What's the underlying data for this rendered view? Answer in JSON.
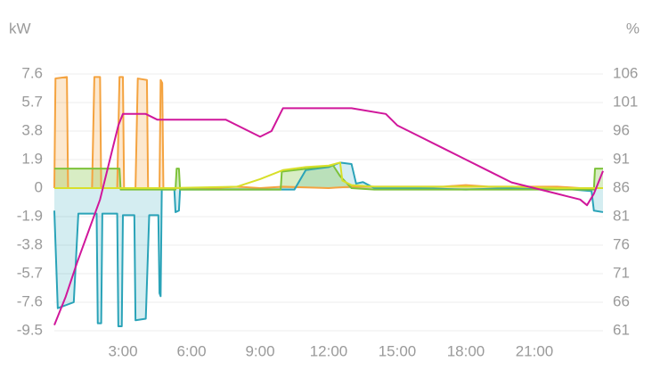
{
  "chart_data": {
    "type": "line",
    "y_label": "kW",
    "y2_label": "%",
    "xlim": [
      0,
      24
    ],
    "xticks": [
      {
        "value": 3,
        "label": "3:00"
      },
      {
        "value": 6,
        "label": "6:00"
      },
      {
        "value": 9,
        "label": "9:00"
      },
      {
        "value": 12,
        "label": "12:00"
      },
      {
        "value": 15,
        "label": "15:00"
      },
      {
        "value": 18,
        "label": "18:00"
      },
      {
        "value": 21,
        "label": "21:00"
      }
    ],
    "ylim": [
      -9.5,
      7.6
    ],
    "yticks": [
      7.6,
      5.7,
      3.8,
      1.9,
      0,
      -1.9,
      -3.8,
      -5.7,
      -7.6,
      -9.5
    ],
    "y2lim": [
      61,
      106
    ],
    "y2ticks": [
      106,
      101,
      96,
      91,
      86,
      81,
      76,
      71,
      66,
      61
    ],
    "grid": true,
    "series": [
      {
        "color": "#f4a340",
        "fill": "rgba(244,163,64,0.25)",
        "x": [
          0,
          0.05,
          0.55,
          0.6,
          1.65,
          1.75,
          2.0,
          2.05,
          2.75,
          2.85,
          3.0,
          3.05,
          3.55,
          3.65,
          4.05,
          4.1,
          4.6,
          4.65,
          4.72,
          4.77,
          7,
          8,
          9,
          10,
          12,
          13,
          14,
          15,
          16,
          17,
          18,
          19,
          20,
          21,
          22,
          23,
          24
        ],
        "values": [
          0,
          7.3,
          7.4,
          0,
          0,
          7.4,
          7.4,
          0,
          0,
          7.4,
          7.4,
          0,
          0,
          7.3,
          7.2,
          0,
          0,
          7.2,
          7.0,
          0,
          0,
          0.1,
          0,
          0.1,
          0,
          0.1,
          0.1,
          0.1,
          0.1,
          0.1,
          0.2,
          0.1,
          0.1,
          0.1,
          0.1,
          0,
          0
        ]
      },
      {
        "color": "#2aa3b8",
        "fill": "rgba(42,163,184,0.2)",
        "x": [
          0,
          0.15,
          0.85,
          1.05,
          1.1,
          1.85,
          1.9,
          2.05,
          2.1,
          2.75,
          2.8,
          2.95,
          3.0,
          3.5,
          3.55,
          4.0,
          4.15,
          4.55,
          4.6,
          4.65,
          4.7,
          5.25,
          5.3,
          5.45,
          5.5,
          10.5,
          11,
          12,
          12.5,
          13,
          13.2,
          13.5,
          14,
          16,
          18,
          20,
          22,
          23.5,
          23.6,
          24
        ],
        "values": [
          -1.5,
          -8.0,
          -7.6,
          -1.7,
          -1.7,
          -1.7,
          -9.0,
          -9.0,
          -1.7,
          -1.7,
          -9.2,
          -9.2,
          -1.8,
          -1.8,
          -8.8,
          -8.7,
          -1.8,
          -1.8,
          -7.0,
          -7.2,
          -0.1,
          -0.1,
          -1.6,
          -1.5,
          -0.1,
          -0.1,
          1.2,
          1.4,
          1.7,
          1.6,
          0.3,
          0.4,
          0,
          0,
          -0.1,
          0,
          0,
          -0.2,
          -1.5,
          -1.6
        ]
      },
      {
        "color": "#7dc23a",
        "fill": "rgba(125,194,58,0.3)",
        "x": [
          0,
          2.85,
          2.9,
          5.3,
          5.35,
          5.45,
          5.5,
          9,
          9.9,
          9.95,
          12.2,
          12.5,
          13,
          14,
          16,
          18,
          20,
          22,
          23.6,
          23.65,
          24
        ],
        "values": [
          1.3,
          1.3,
          -0.1,
          -0.1,
          1.3,
          1.3,
          -0.1,
          -0.1,
          -0.1,
          1.1,
          1.5,
          0.8,
          0,
          -0.1,
          -0.1,
          -0.1,
          -0.1,
          -0.1,
          -0.1,
          1.3,
          1.3
        ]
      },
      {
        "color": "#d8df2a",
        "x": [
          0,
          5,
          8,
          9,
          10,
          11,
          12,
          12.5,
          12.6,
          13,
          14,
          16,
          18,
          20,
          22,
          24
        ],
        "values": [
          0,
          0,
          0.1,
          0.6,
          1.2,
          1.4,
          1.5,
          1.7,
          0.5,
          0.2,
          0.1,
          0.1,
          0.1,
          0.1,
          0,
          0
        ]
      },
      {
        "color": "#d0179b",
        "axis": "y2",
        "x": [
          0,
          0.5,
          1,
          2,
          2.8,
          3,
          4,
          4.5,
          5,
          6,
          7,
          7.5,
          8,
          8.5,
          9,
          9.5,
          10,
          13,
          14.5,
          15,
          16,
          17,
          18,
          19,
          20,
          21,
          22,
          23,
          23.3,
          23.6,
          24
        ],
        "values": [
          62,
          67,
          73,
          84,
          97,
          99,
          99,
          98,
          98,
          98,
          98,
          98,
          97,
          96,
          95,
          96,
          100,
          100,
          99,
          97,
          95,
          93,
          91,
          89,
          87,
          86,
          85,
          84,
          83,
          85,
          89
        ]
      }
    ]
  }
}
